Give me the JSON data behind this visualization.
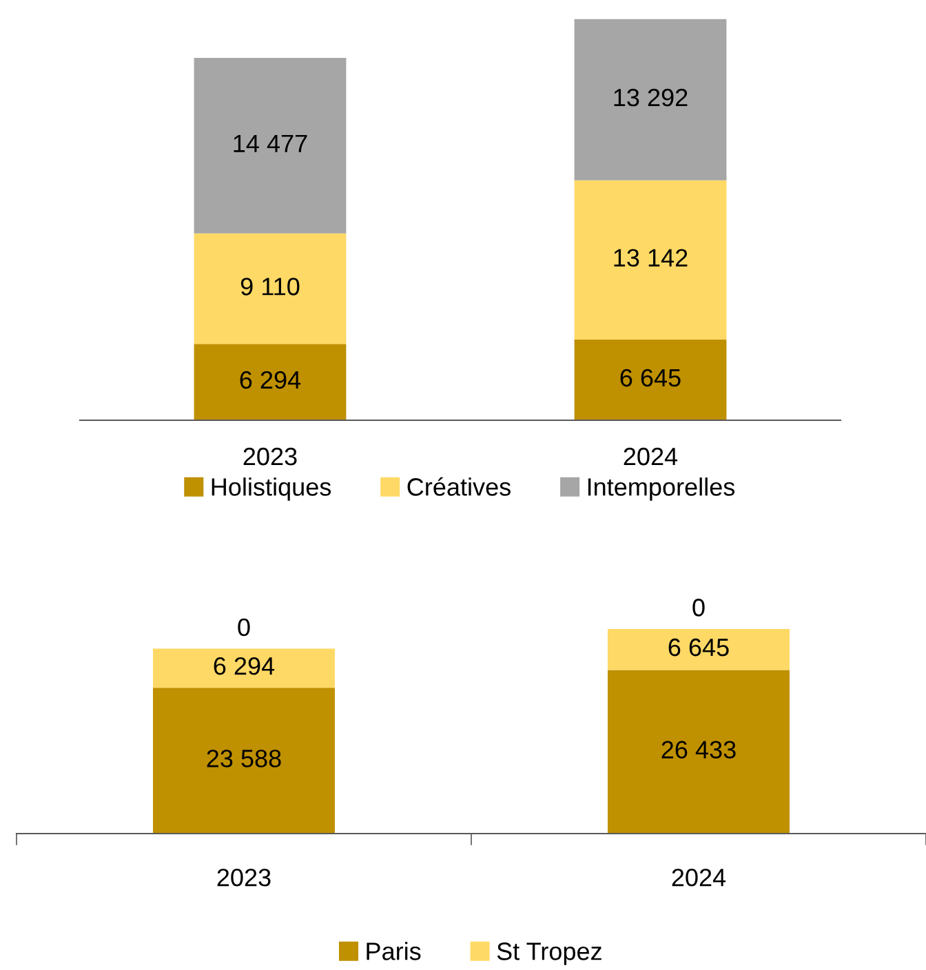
{
  "chart_data": [
    {
      "type": "bar",
      "stacked": true,
      "categories": [
        "2023",
        "2024"
      ],
      "legend": "bottom",
      "series": [
        {
          "name": "Holistiques",
          "color": "#bf9000",
          "values": [
            6294,
            6645
          ],
          "value_labels": [
            "6 294",
            "6 645"
          ]
        },
        {
          "name": "Créatives",
          "color": "#ffd966",
          "values": [
            9110,
            13142
          ],
          "value_labels": [
            "9 110",
            "13 142"
          ]
        },
        {
          "name": "Intemporelles",
          "color": "#a6a6a6",
          "values": [
            14477,
            13292
          ],
          "value_labels": [
            "14 477",
            "13 292"
          ]
        }
      ]
    },
    {
      "type": "bar",
      "stacked": true,
      "categories": [
        "2023",
        "2024"
      ],
      "legend": "bottom",
      "series": [
        {
          "name": "Paris",
          "color": "#bf9000",
          "values": [
            23588,
            26433
          ],
          "value_labels": [
            "23 588",
            "26 433"
          ]
        },
        {
          "name": "St Tropez",
          "color": "#ffd966",
          "values": [
            6294,
            6645
          ],
          "value_labels": [
            "6 294",
            "6 645"
          ]
        },
        {
          "color": "#a6a6a6",
          "values": [
            0,
            0
          ],
          "value_labels": [
            "0",
            "0"
          ]
        }
      ]
    }
  ]
}
